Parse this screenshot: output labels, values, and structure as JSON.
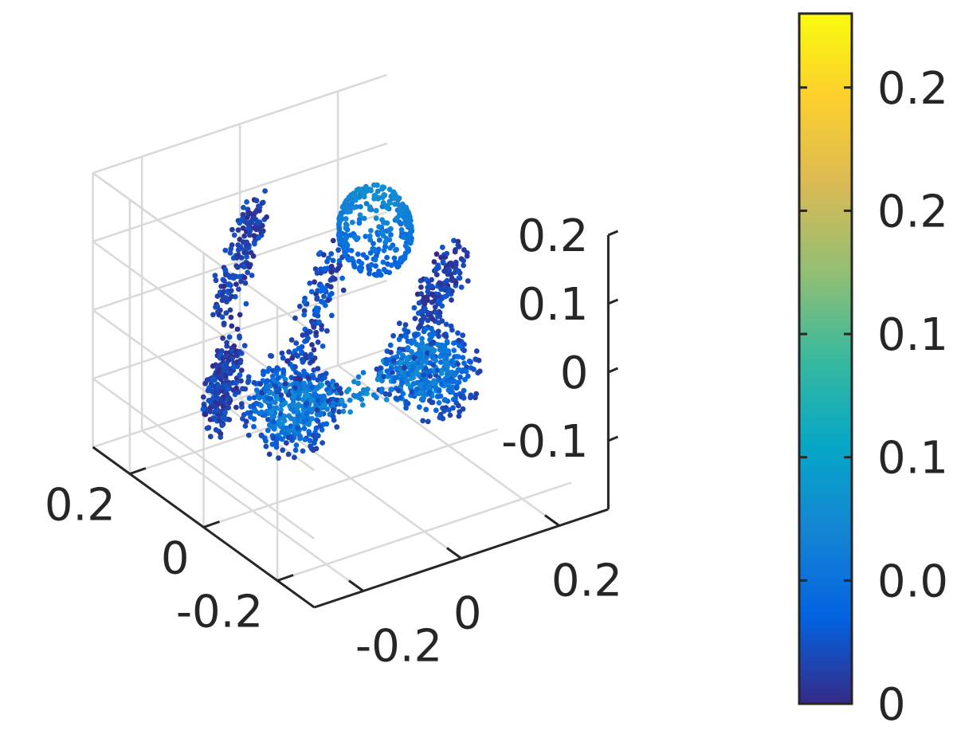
{
  "chart_data": {
    "type": "scatter",
    "dimensions": 3,
    "grid": true,
    "legend": "none",
    "colormap": "parula",
    "colormap_stops": [
      "#352a87",
      "#0363e1",
      "#1485d4",
      "#06a7c6",
      "#38b99e",
      "#92bf73",
      "#d9ba56",
      "#fcce2e",
      "#f9fb0e"
    ],
    "axis_color": "#262626",
    "grid_color": "#d9d9d9",
    "x_axis": {
      "ticks": [
        -0.2,
        0,
        0.2
      ],
      "tick_labels": [
        "-0.2",
        "0",
        "0.2"
      ],
      "range": [
        -0.3,
        0.3
      ]
    },
    "y_axis": {
      "ticks": [
        -0.2,
        0,
        0.2
      ],
      "tick_labels": [
        "-0.2",
        "0",
        "0.2"
      ],
      "range": [
        -0.3,
        0.3
      ]
    },
    "z_axis": {
      "ticks": [
        -0.1,
        0,
        0.1,
        0.2
      ],
      "tick_labels": [
        "-0.1",
        "0",
        "0.1",
        "0.2"
      ],
      "range": [
        -0.2,
        0.2
      ]
    },
    "colorbar": {
      "position": "right",
      "ticks": [
        0,
        0.05,
        0.1,
        0.15,
        0.2,
        0.25
      ],
      "tick_labels": [
        "0",
        "0.0",
        "0.1",
        "0.1",
        "0.2",
        "0.2"
      ],
      "range": [
        0,
        0.28
      ]
    },
    "point_clouds": [
      {
        "name": "sphere",
        "center": [
          0.05,
          0.0,
          0.15
        ],
        "radius": 0.06,
        "n": 320,
        "value_range": [
          0.03,
          0.08
        ]
      },
      {
        "name": "streak-upper-left",
        "from": [
          -0.22,
          0.05,
          0.08
        ],
        "to": [
          0.0,
          0.25,
          0.1
        ],
        "n": 160,
        "value_range": [
          0.0,
          0.03
        ]
      },
      {
        "name": "streak-upper-right",
        "from": [
          0.0,
          -0.2,
          0.12
        ],
        "to": [
          0.18,
          -0.05,
          0.1
        ],
        "n": 140,
        "value_range": [
          0.0,
          0.03
        ]
      },
      {
        "name": "streak-middle",
        "from": [
          -0.15,
          -0.05,
          0.0
        ],
        "to": [
          0.12,
          0.2,
          0.02
        ],
        "n": 140,
        "value_range": [
          0.0,
          0.04
        ]
      },
      {
        "name": "streak-lower-left",
        "from": [
          -0.25,
          0.05,
          -0.08
        ],
        "to": [
          -0.05,
          0.25,
          -0.1
        ],
        "n": 220,
        "value_range": [
          0.0,
          0.03
        ]
      },
      {
        "name": "burst-left",
        "center": [
          -0.05,
          0.1,
          -0.12
        ],
        "radius": 0.09,
        "n": 420,
        "value_range": [
          0.0,
          0.11
        ]
      },
      {
        "name": "burst-right",
        "center": [
          0.12,
          -0.05,
          -0.05
        ],
        "radius": 0.09,
        "n": 420,
        "value_range": [
          0.0,
          0.11
        ]
      },
      {
        "name": "bridge",
        "from": [
          -0.05,
          0.1,
          -0.12
        ],
        "to": [
          0.12,
          -0.05,
          -0.05
        ],
        "n": 120,
        "value_range": [
          0.05,
          0.09
        ]
      }
    ]
  }
}
